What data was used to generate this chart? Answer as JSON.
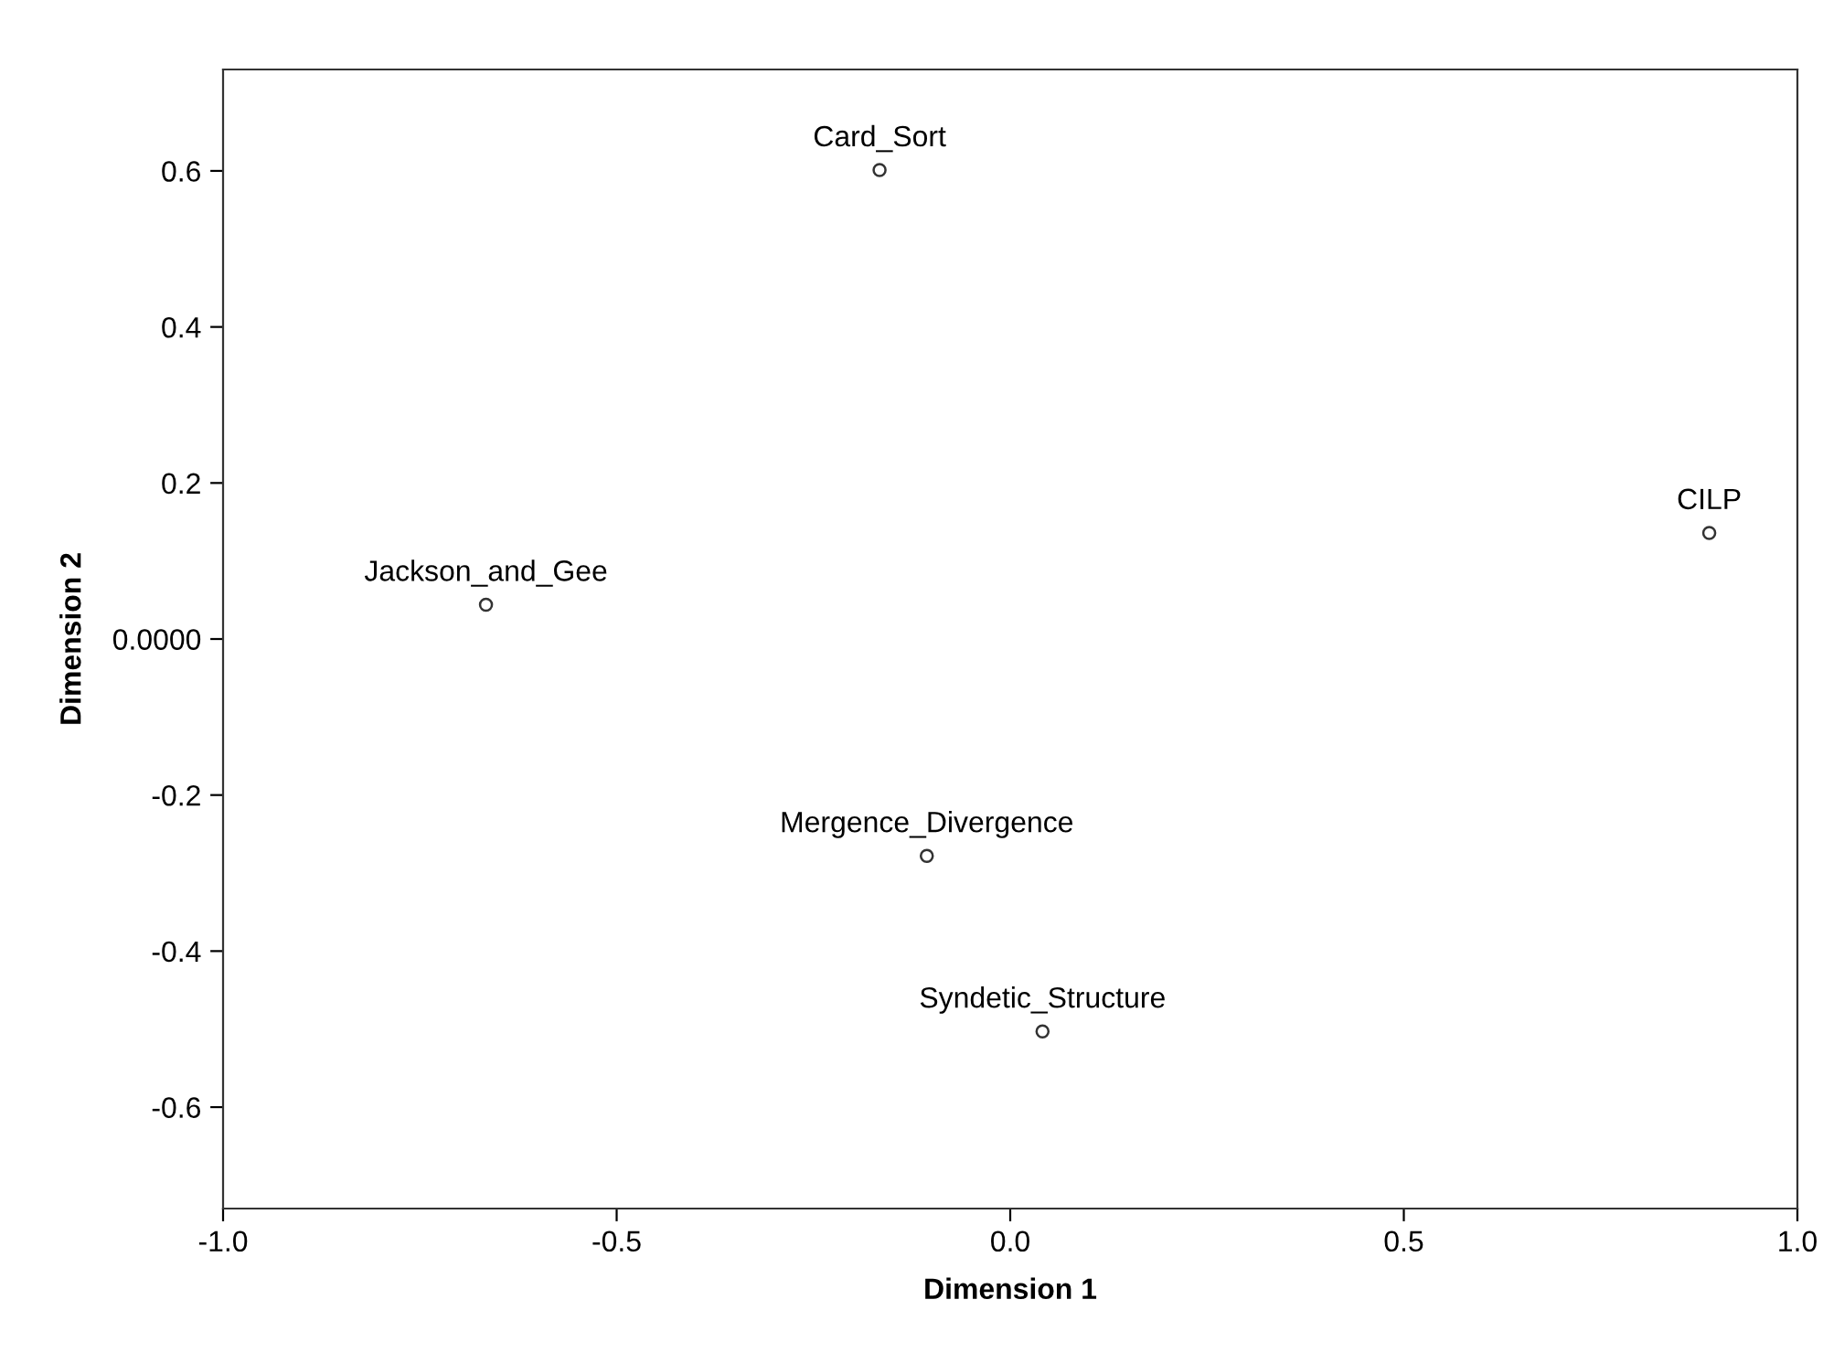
{
  "chart_data": {
    "type": "scatter",
    "xlabel": "Dimension 1",
    "ylabel": "Dimension 2",
    "x": [
      -0.166,
      0.888,
      -0.666,
      -0.106,
      0.041
    ],
    "series": [
      {
        "color": "#333333",
        "values": [
          0.601,
          0.136,
          0.044,
          -0.278,
          -0.503
        ]
      }
    ],
    "marker": "circle",
    "annotations": [
      {
        "text": "Card_Sort",
        "x": -0.166,
        "y": 0.601
      },
      {
        "text": "CILP",
        "x": 0.888,
        "y": 0.136
      },
      {
        "text": "Jackson_and_Gee",
        "x": -0.666,
        "y": 0.044
      },
      {
        "text": "Mergence_Divergence",
        "x": -0.106,
        "y": -0.278
      },
      {
        "text": "Syndetic_Structure",
        "x": 0.041,
        "y": -0.503
      }
    ],
    "xlim": [
      -1.0,
      1.0
    ],
    "xticks": [
      {
        "value": -1.0,
        "label": "-1.0"
      },
      {
        "value": -0.5,
        "label": "-0.5"
      },
      {
        "value": 0.0,
        "label": "0.0"
      },
      {
        "value": 0.5,
        "label": "0.5"
      },
      {
        "value": 1.0,
        "label": "1.0"
      }
    ],
    "ylim": [
      -0.73,
      0.73
    ],
    "yticks": [
      {
        "value": -0.6,
        "label": "-0.6"
      },
      {
        "value": -0.4,
        "label": "-0.4"
      },
      {
        "value": -0.2,
        "label": "-0.2"
      },
      {
        "value": 0.0,
        "label": "0.0000"
      },
      {
        "value": 0.2,
        "label": "0.2"
      },
      {
        "value": 0.4,
        "label": "0.4"
      },
      {
        "value": 0.6,
        "label": "0.6"
      }
    ],
    "grid": false
  }
}
